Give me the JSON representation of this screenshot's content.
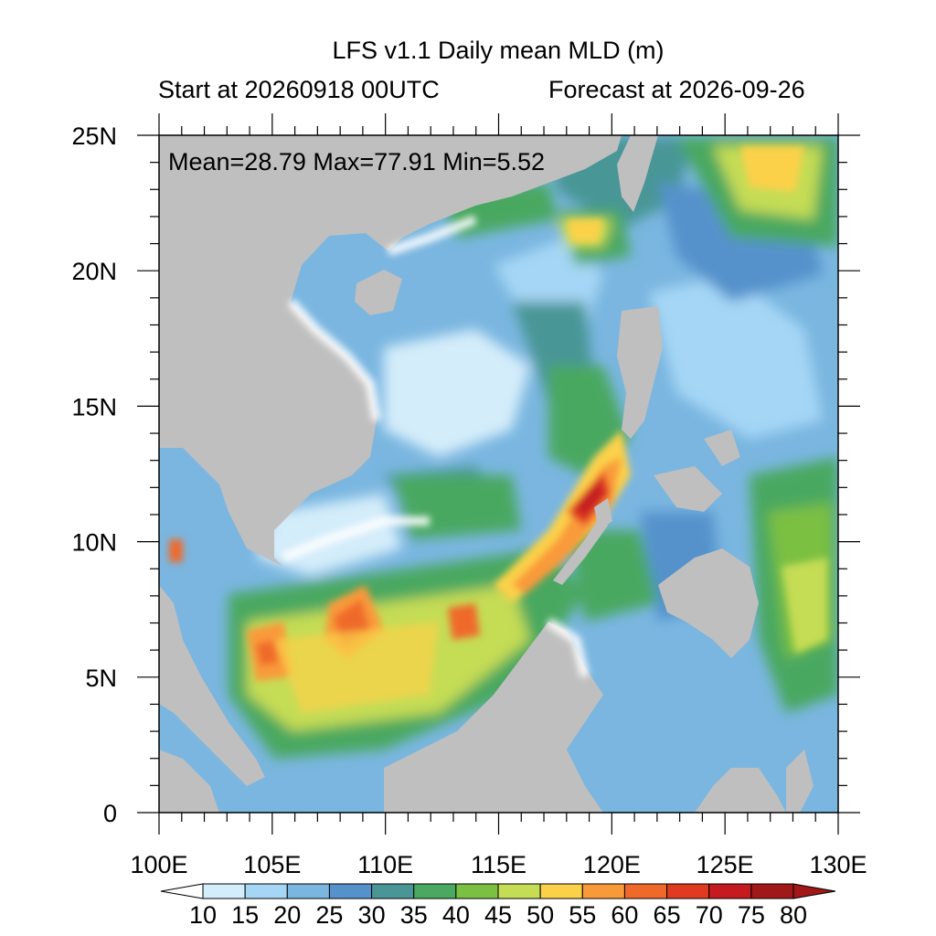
{
  "title": "LFS v1.1 Daily mean MLD (m)",
  "subtitle_left": "Start at 20260918 00UTC",
  "subtitle_right": "Forecast at 2026-09-26",
  "stats": "Mean=28.79  Max=77.91  Min=5.52",
  "y_ticks": [
    "25N",
    "20N",
    "15N",
    "10N",
    "5N",
    "0"
  ],
  "x_ticks": [
    "100E",
    "105E",
    "110E",
    "115E",
    "120E",
    "125E",
    "130E"
  ],
  "colorbar": {
    "labels": [
      "10",
      "15",
      "20",
      "25",
      "30",
      "35",
      "40",
      "45",
      "50",
      "55",
      "60",
      "65",
      "70",
      "75",
      "80"
    ],
    "colors": [
      "#ffffff",
      "#d4edfa",
      "#a5d6f5",
      "#7ab6e0",
      "#5592cc",
      "#4a9696",
      "#4aa860",
      "#7cc043",
      "#c5dc55",
      "#fbd14a",
      "#f99a3a",
      "#ef6a2a",
      "#e03a20",
      "#c41a20",
      "#a01818"
    ]
  },
  "colors": {
    "land": "#bfbfbf",
    "ocean_base": "#7ab6e0"
  },
  "map": {
    "lon_range": [
      100,
      130
    ],
    "lat_range": [
      0,
      25
    ]
  }
}
